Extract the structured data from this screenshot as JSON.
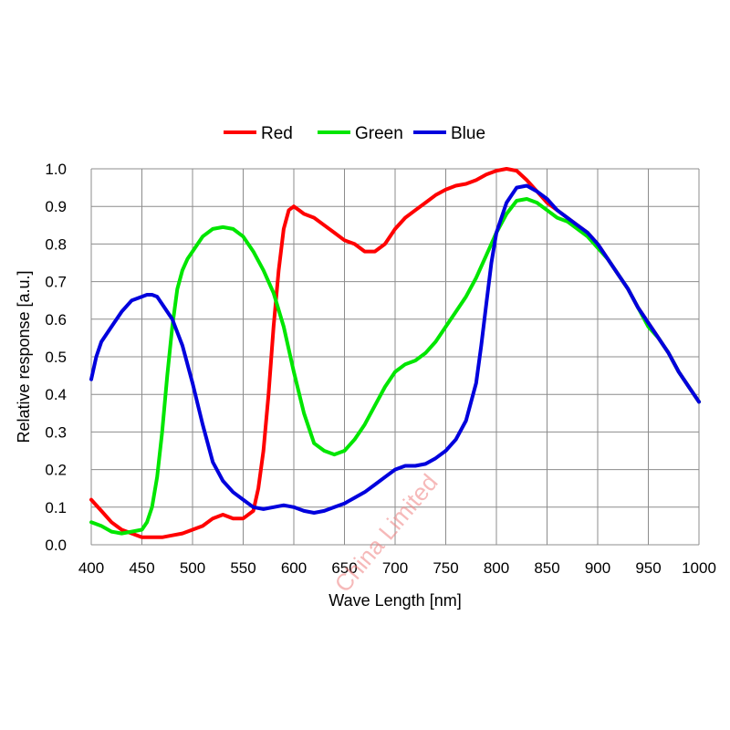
{
  "chart_data": {
    "type": "line",
    "title": "",
    "xlabel": "Wave Length [nm]",
    "ylabel": "Relative response [a.u.]",
    "xlim": [
      400,
      1000
    ],
    "ylim": [
      0.0,
      1.0
    ],
    "xticks": [
      "400",
      "450",
      "500",
      "550",
      "600",
      "650",
      "700",
      "750",
      "800",
      "850",
      "900",
      "950",
      "1000"
    ],
    "yticks": [
      "0.0",
      "0.1",
      "0.2",
      "0.3",
      "0.4",
      "0.5",
      "0.6",
      "0.7",
      "0.8",
      "0.9",
      "1.0"
    ],
    "grid": true,
    "legend_position": "top",
    "series": [
      {
        "name": "Red",
        "color": "#ff0000",
        "x": [
          400,
          410,
          420,
          430,
          440,
          450,
          460,
          470,
          480,
          490,
          500,
          510,
          520,
          530,
          540,
          550,
          560,
          565,
          570,
          575,
          580,
          585,
          590,
          595,
          600,
          605,
          610,
          620,
          630,
          640,
          650,
          660,
          670,
          680,
          690,
          700,
          710,
          720,
          730,
          740,
          750,
          760,
          770,
          780,
          790,
          800,
          810,
          820,
          830,
          840,
          850,
          860,
          870,
          880,
          890,
          900,
          910,
          920,
          930,
          940,
          950,
          960,
          970,
          980,
          990,
          1000
        ],
        "y": [
          0.12,
          0.09,
          0.06,
          0.04,
          0.03,
          0.02,
          0.02,
          0.02,
          0.025,
          0.03,
          0.04,
          0.05,
          0.07,
          0.08,
          0.07,
          0.07,
          0.09,
          0.15,
          0.25,
          0.4,
          0.58,
          0.73,
          0.84,
          0.89,
          0.9,
          0.89,
          0.88,
          0.87,
          0.85,
          0.83,
          0.81,
          0.8,
          0.78,
          0.78,
          0.8,
          0.84,
          0.87,
          0.89,
          0.91,
          0.93,
          0.945,
          0.955,
          0.96,
          0.97,
          0.985,
          0.995,
          1.0,
          0.995,
          0.97,
          0.94,
          0.91,
          0.89,
          0.87,
          0.85,
          0.83,
          0.8,
          0.76,
          0.72,
          0.68,
          0.63,
          0.59,
          0.55,
          0.51,
          0.46,
          0.42,
          0.38
        ]
      },
      {
        "name": "Green",
        "color": "#00e600",
        "x": [
          400,
          410,
          420,
          430,
          440,
          450,
          455,
          460,
          465,
          470,
          475,
          480,
          485,
          490,
          495,
          500,
          510,
          520,
          530,
          540,
          550,
          560,
          570,
          580,
          590,
          600,
          610,
          620,
          630,
          640,
          650,
          660,
          670,
          680,
          690,
          700,
          710,
          720,
          730,
          740,
          750,
          760,
          770,
          780,
          790,
          800,
          810,
          820,
          830,
          840,
          850,
          860,
          870,
          880,
          890,
          900,
          910,
          920,
          930,
          940,
          950,
          960,
          970,
          980,
          990,
          1000
        ],
        "y": [
          0.06,
          0.05,
          0.035,
          0.03,
          0.035,
          0.04,
          0.06,
          0.1,
          0.18,
          0.3,
          0.45,
          0.58,
          0.68,
          0.73,
          0.76,
          0.78,
          0.82,
          0.84,
          0.845,
          0.84,
          0.82,
          0.78,
          0.73,
          0.67,
          0.58,
          0.46,
          0.35,
          0.27,
          0.25,
          0.24,
          0.25,
          0.28,
          0.32,
          0.37,
          0.42,
          0.46,
          0.48,
          0.49,
          0.51,
          0.54,
          0.58,
          0.62,
          0.66,
          0.71,
          0.77,
          0.83,
          0.88,
          0.915,
          0.92,
          0.91,
          0.89,
          0.87,
          0.86,
          0.84,
          0.82,
          0.79,
          0.76,
          0.72,
          0.68,
          0.63,
          0.58,
          0.55,
          0.51,
          0.46,
          0.42,
          0.38
        ]
      },
      {
        "name": "Blue",
        "color": "#0000dd",
        "x": [
          400,
          405,
          410,
          420,
          430,
          440,
          450,
          455,
          460,
          465,
          470,
          480,
          490,
          500,
          510,
          520,
          530,
          540,
          550,
          560,
          570,
          580,
          590,
          600,
          610,
          620,
          630,
          640,
          650,
          660,
          670,
          680,
          690,
          700,
          710,
          720,
          730,
          740,
          750,
          760,
          770,
          780,
          785,
          790,
          795,
          800,
          810,
          820,
          830,
          840,
          850,
          860,
          870,
          880,
          890,
          900,
          910,
          920,
          930,
          940,
          950,
          960,
          970,
          980,
          990,
          1000
        ],
        "y": [
          0.44,
          0.5,
          0.54,
          0.58,
          0.62,
          0.65,
          0.66,
          0.665,
          0.665,
          0.66,
          0.64,
          0.6,
          0.53,
          0.43,
          0.32,
          0.22,
          0.17,
          0.14,
          0.12,
          0.1,
          0.095,
          0.1,
          0.105,
          0.1,
          0.09,
          0.085,
          0.09,
          0.1,
          0.11,
          0.125,
          0.14,
          0.16,
          0.18,
          0.2,
          0.21,
          0.21,
          0.215,
          0.23,
          0.25,
          0.28,
          0.33,
          0.43,
          0.53,
          0.64,
          0.75,
          0.83,
          0.91,
          0.95,
          0.955,
          0.94,
          0.92,
          0.89,
          0.87,
          0.85,
          0.83,
          0.8,
          0.76,
          0.72,
          0.68,
          0.63,
          0.59,
          0.55,
          0.51,
          0.46,
          0.42,
          0.38
        ]
      }
    ]
  },
  "watermark": "China Limited"
}
